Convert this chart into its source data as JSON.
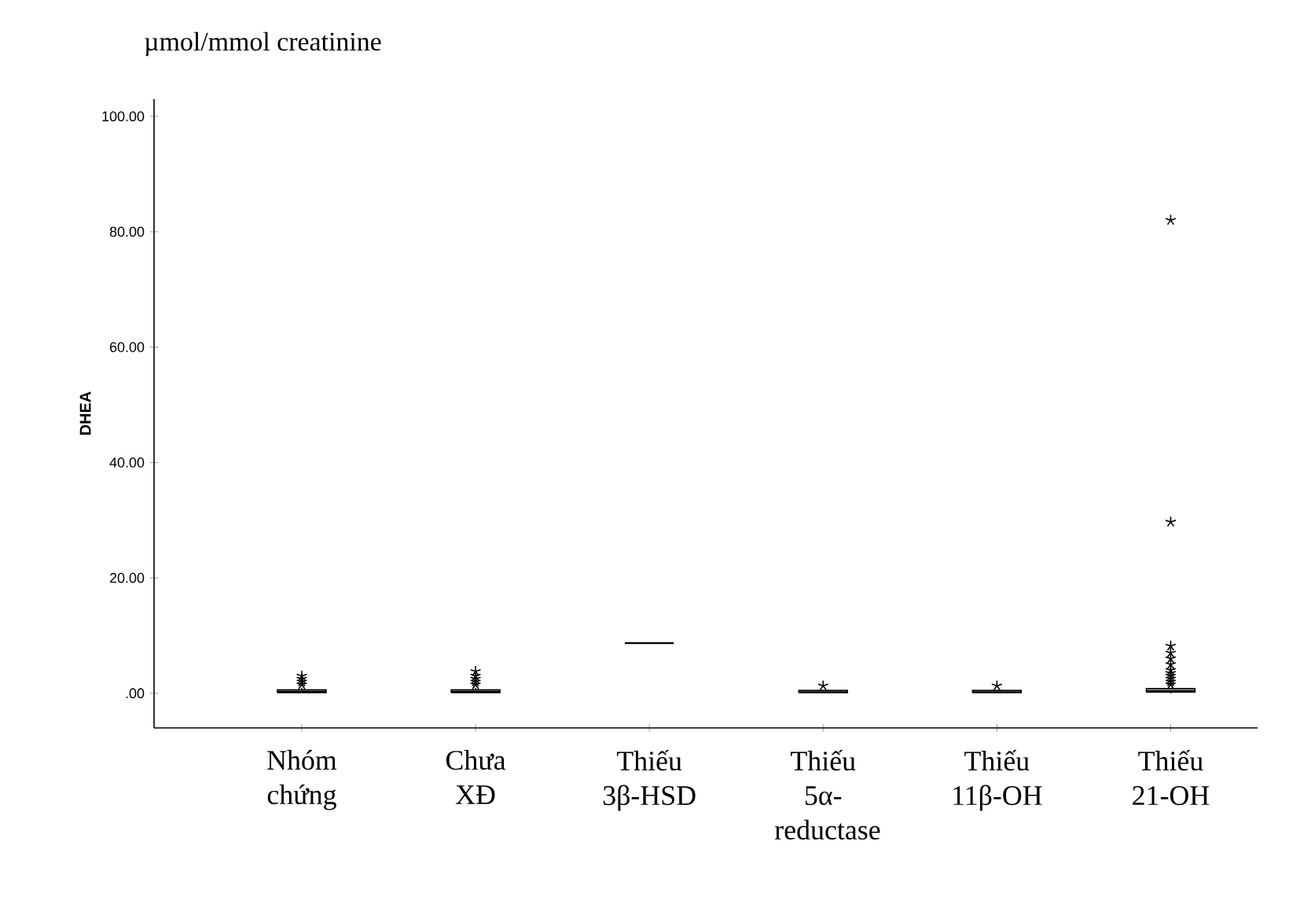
{
  "chart_data": {
    "type": "box",
    "title": "µmol/mmol creatinine",
    "ylabel": "DHEA",
    "categories": [
      "Nhóm chứng",
      "Chưa XĐ",
      "Thiếu 3β-HSD",
      "Thiếu 5α-reductase",
      "Thiếu 11β-OH",
      "Thiếu 21-OH"
    ],
    "boxes": [
      {
        "low": 0,
        "q1": 0.1,
        "median": 0.3,
        "q3": 0.6,
        "high": 0.9,
        "outliers": [
          1.5,
          2.0,
          2.5,
          3.0
        ]
      },
      {
        "low": 0,
        "q1": 0.1,
        "median": 0.3,
        "q3": 0.6,
        "high": 0.9,
        "outliers": [
          1.5,
          2.0,
          2.5,
          3.0,
          3.8
        ]
      },
      {
        "low": 8.7,
        "q1": 8.7,
        "median": 8.7,
        "q3": 8.7,
        "high": 8.7
      },
      {
        "low": 0,
        "q1": 0.1,
        "median": 0.2,
        "q3": 0.5,
        "high": 0.5,
        "outliers": [
          1.3
        ]
      },
      {
        "low": 0,
        "q1": 0.1,
        "median": 0.2,
        "q3": 0.5,
        "high": 0.5,
        "outliers": [
          1.3
        ]
      },
      {
        "low": 0,
        "q1": 0.2,
        "median": 0.4,
        "q3": 0.8,
        "high": 0.8,
        "outliers": [
          1.5,
          2.0,
          2.5,
          3.0,
          3.5,
          4.0,
          5.0,
          6.0,
          7.0,
          8.2,
          29.7,
          82.0
        ]
      }
    ],
    "ylim": [
      -6,
      103
    ],
    "yticks": [
      {
        "value": 0,
        "label": ".00"
      },
      {
        "value": 20,
        "label": "20.00"
      },
      {
        "value": 40,
        "label": "40.00"
      },
      {
        "value": 60,
        "label": "60.00"
      },
      {
        "value": 80,
        "label": "80.00"
      },
      {
        "value": 100,
        "label": "100.00"
      }
    ],
    "marker": "star",
    "grid": false
  }
}
